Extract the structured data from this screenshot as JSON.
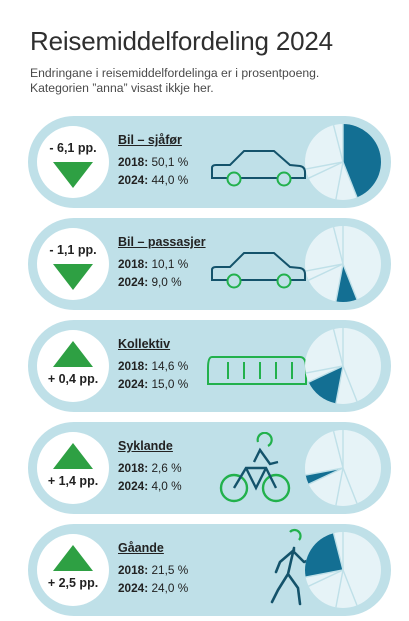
{
  "header": {
    "title": "Reisemiddelfordeling 2024",
    "subtitle_line1": "Endringane i reisemiddelfordelinga er i prosentpoeng.",
    "subtitle_line2": "Kategorien ”anna” visast ikkje her."
  },
  "colors": {
    "card_bg": "#bfe0e8",
    "up_arrow": "#2ea043",
    "down_arrow": "#2ea043",
    "pie_highlight": "#136f93",
    "pie_rest": "#e6f3f7",
    "icon_dark": "#14536b",
    "icon_green": "#22b14c"
  },
  "categories": [
    {
      "name": "Bil – sjåfør",
      "change": "- 6,1 pp.",
      "direction": "down",
      "icon": "car-driver-icon",
      "label_2018": "2018:",
      "value_2018": "50,1 %",
      "label_2024": "2024:",
      "value_2024": "44,0 %",
      "share_2024": 44.0
    },
    {
      "name": "Bil – passasjer",
      "change": "- 1,1 pp.",
      "direction": "down",
      "icon": "car-passenger-icon",
      "label_2018": "2018:",
      "value_2018": "10,1 %",
      "label_2024": "2024:",
      "value_2024": "9,0 %",
      "share_2024": 9.0
    },
    {
      "name": "Kollektiv",
      "change": "+ 0,4 pp.",
      "direction": "up",
      "icon": "bus-icon",
      "label_2018": "2018:",
      "value_2018": "14,6 %",
      "label_2024": "2024:",
      "value_2024": "15,0 %",
      "share_2024": 15.0
    },
    {
      "name": "Syklande",
      "change": "+ 1,4 pp.",
      "direction": "up",
      "icon": "bicycle-icon",
      "label_2018": "2018:",
      "value_2018": "2,6 %",
      "label_2024": "2024:",
      "value_2024": "4,0 %",
      "share_2024": 4.0
    },
    {
      "name": "Gåande",
      "change": "+ 2,5 pp.",
      "direction": "up",
      "icon": "pedestrian-icon",
      "label_2018": "2018:",
      "value_2018": "21,5 %",
      "label_2024": "2024:",
      "value_2024": "24,0 %",
      "share_2024": 24.0
    }
  ]
}
